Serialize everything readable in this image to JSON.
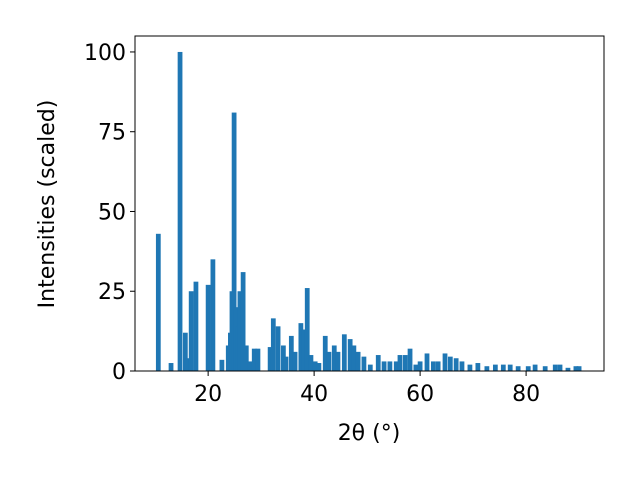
{
  "chart_data": {
    "type": "bar",
    "xlabel": "2θ (°)",
    "ylabel": "Intensities (scaled)",
    "color": "#1f77b4",
    "x": [
      10.6,
      13.0,
      14.7,
      15.7,
      16.0,
      16.8,
      17.7,
      20.0,
      20.9,
      22.6,
      23.8,
      24.2,
      24.5,
      24.9,
      25.3,
      25.7,
      26.0,
      26.6,
      27.2,
      27.9,
      28.7,
      29.4,
      31.7,
      32.3,
      33.2,
      34.2,
      34.7,
      35.7,
      36.4,
      37.5,
      38.1,
      38.7,
      39.4,
      40.2,
      40.9,
      42.1,
      42.8,
      43.8,
      44.5,
      45.7,
      46.8,
      47.5,
      48.3,
      49.4,
      50.6,
      52.1,
      53.2,
      54.3,
      55.5,
      56.2,
      57.2,
      58.1,
      59.2,
      60.0,
      61.3,
      62.5,
      63.4,
      64.7,
      65.7,
      66.8,
      67.9,
      69.4,
      70.9,
      72.6,
      74.2,
      75.7,
      77.0,
      78.5,
      80.4,
      81.7,
      83.6,
      85.5,
      86.4,
      87.9,
      89.4,
      90.0
    ],
    "values": [
      43,
      2.5,
      100,
      12,
      4,
      25,
      28,
      27,
      35,
      3.5,
      8,
      12,
      25,
      81,
      20,
      14,
      25,
      31,
      8,
      3,
      7,
      7,
      7.5,
      16.5,
      14,
      8,
      4.5,
      11,
      6,
      15,
      13,
      26,
      5,
      3,
      2.5,
      11,
      6,
      8,
      6,
      11.5,
      10,
      8,
      6,
      4.5,
      2,
      5,
      3,
      3,
      3,
      5,
      5,
      7,
      2,
      3,
      5.5,
      3,
      3,
      5.5,
      4.5,
      4,
      3,
      2,
      2.5,
      1.5,
      2,
      2,
      2,
      1.5,
      1.5,
      2,
      1.5,
      2,
      2,
      1,
      1.5,
      1.5
    ],
    "xlim": [
      6.2,
      94.7
    ],
    "ylim": [
      0,
      105
    ],
    "xticks": [
      20,
      40,
      60,
      80
    ],
    "yticks": [
      0,
      25,
      50,
      75,
      100
    ]
  }
}
